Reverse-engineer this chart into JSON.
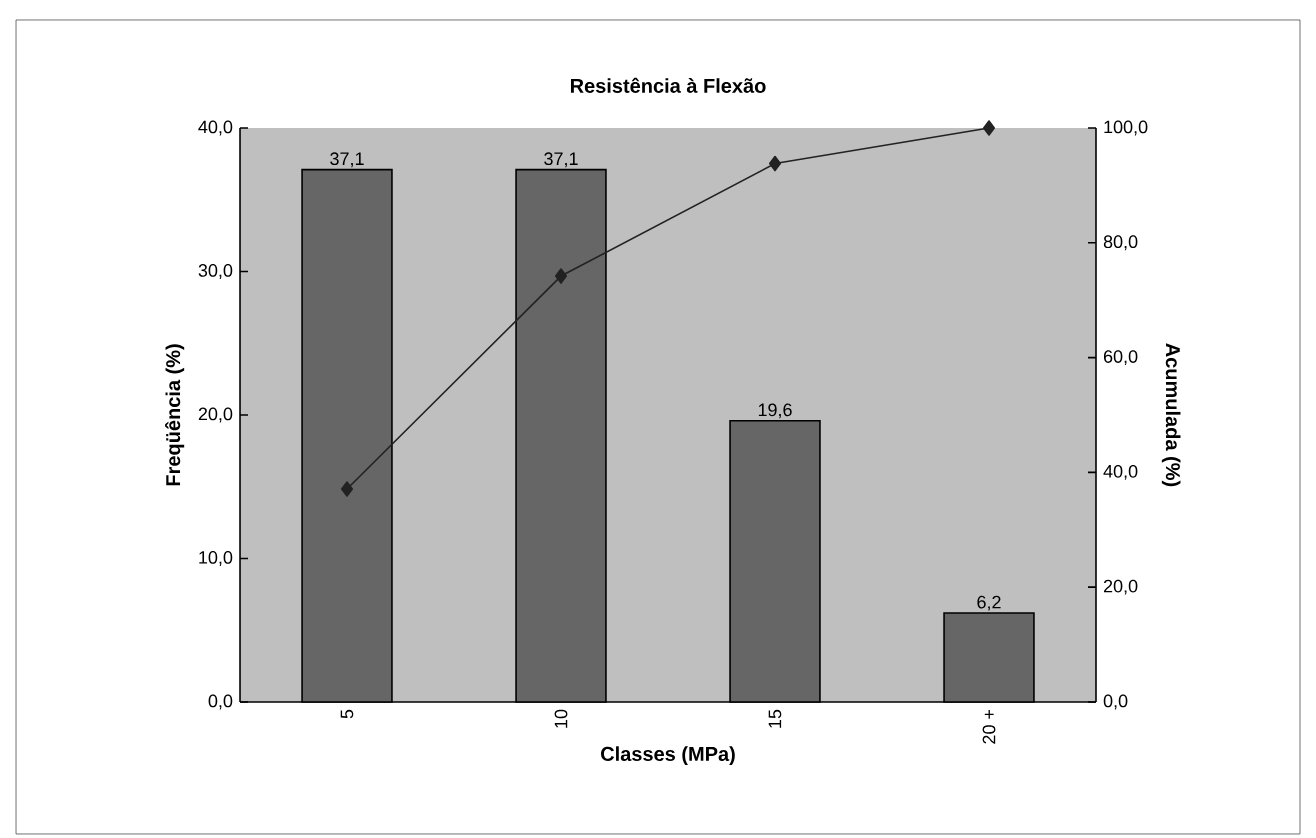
{
  "chart_data": {
    "type": "bar",
    "title": "Resistência à Flexão",
    "xlabel": "Classes (MPa)",
    "ylabel": "Freqüência (%)",
    "y2label": "Acumulada (%)",
    "categories": [
      "5",
      "10",
      "15",
      "20 +"
    ],
    "series": [
      {
        "color": "#666666",
        "values": [
          37.1,
          37.1,
          19.6,
          6.2
        ],
        "value_labels": [
          "37,1",
          "37,1",
          "19,6",
          "6,2"
        ]
      },
      {
        "type": "line",
        "axis": "y2",
        "color": "#222222",
        "marker": "diamond",
        "values": [
          37.1,
          74.2,
          93.8,
          100
        ]
      }
    ],
    "ylim": [
      0,
      40
    ],
    "yticks": [
      {
        "value": 0,
        "label": "0,0"
      },
      {
        "value": 10,
        "label": "10,0"
      },
      {
        "value": 20,
        "label": "20,0"
      },
      {
        "value": 30,
        "label": "30,0"
      },
      {
        "value": 40,
        "label": "40,0"
      }
    ],
    "y2lim": [
      0,
      100
    ],
    "y2ticks": [
      {
        "value": 0,
        "label": "0,0"
      },
      {
        "value": 20,
        "label": "20,0"
      },
      {
        "value": 40,
        "label": "40,0"
      },
      {
        "value": 60,
        "label": "60,0"
      },
      {
        "value": 80,
        "label": "80,0"
      },
      {
        "value": 100,
        "label": "100,0"
      }
    ],
    "grid": false
  }
}
